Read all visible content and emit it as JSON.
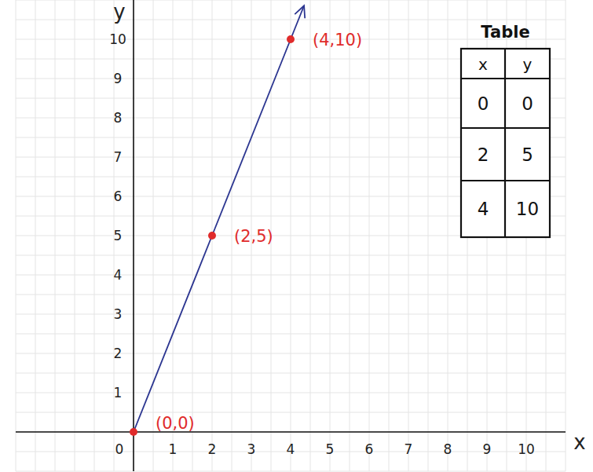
{
  "chart_data": {
    "type": "line",
    "x": [
      0,
      2,
      4
    ],
    "values": [
      0,
      5,
      10
    ],
    "color": "#2b3590",
    "marker": "circle",
    "annotations": [
      "(0,0)",
      "(2,5)",
      "(4,10)"
    ],
    "x_label": "x",
    "y_label": "y",
    "xlim": [
      -3,
      11
    ],
    "ylim": [
      -1,
      11
    ],
    "xticks": [
      0,
      1,
      2,
      3,
      4,
      5,
      6,
      7,
      8,
      9,
      10
    ],
    "yticks": [
      1,
      2,
      3,
      4,
      5,
      6,
      7,
      8,
      9,
      10
    ],
    "grid": true
  },
  "table": {
    "title": "Table",
    "header": [
      "x",
      "y"
    ],
    "rows": [
      [
        0,
        0
      ],
      [
        2,
        5
      ],
      [
        4,
        10
      ]
    ]
  }
}
